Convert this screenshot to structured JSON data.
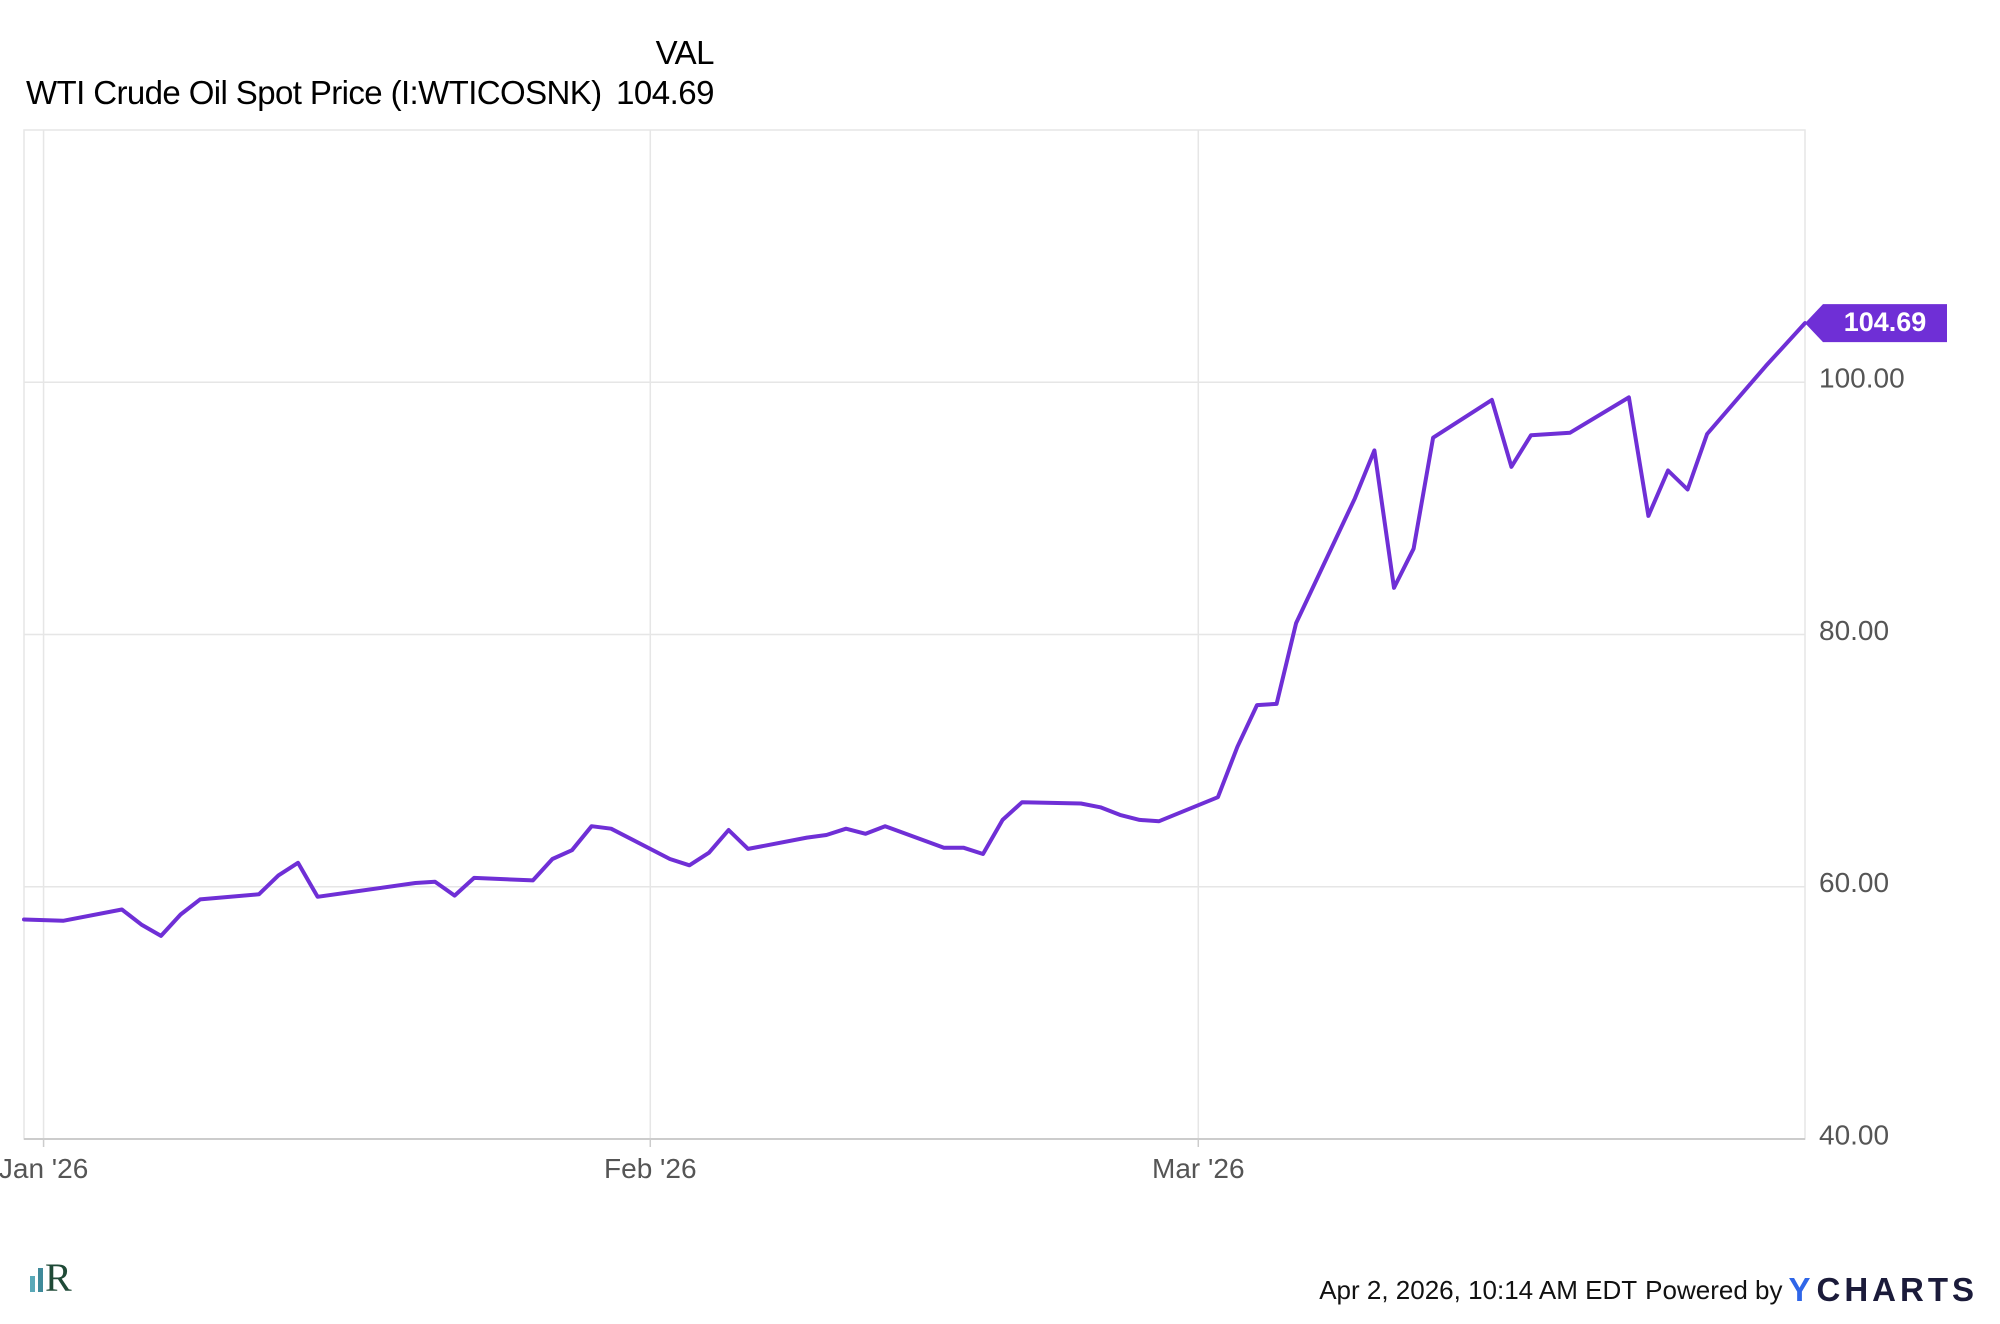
{
  "legend": {
    "header": "VAL",
    "series_name": "WTI Crude Oil Spot Price (I:WTICOSNK)",
    "series_value": "104.69"
  },
  "footer": {
    "timestamp": "Apr 2, 2026, 10:14 AM EDT",
    "powered_by": "Powered by",
    "brand_y": "Y",
    "brand_rest": "CHARTS"
  },
  "colors": {
    "line": "#6f2fd6",
    "grid": "#e6e6e6",
    "axis_text": "#555555",
    "brand": "#2f66e8"
  },
  "logo_icon": "r-logo-icon",
  "chart_data": {
    "type": "line",
    "title": "",
    "xlabel": "",
    "ylabel": "",
    "ylim": [
      40,
      120
    ],
    "xlim": [
      "2025-12-31",
      "2026-04-01"
    ],
    "yticks": [
      40,
      60,
      80,
      100
    ],
    "ytick_labels": [
      "40.00",
      "60.00",
      "80.00",
      "100.00"
    ],
    "xticks": [
      {
        "date": "2026-01-01",
        "label": "Jan '26"
      },
      {
        "date": "2026-02-01",
        "label": "Feb '26"
      },
      {
        "date": "2026-03-01",
        "label": "Mar '26"
      }
    ],
    "grid": true,
    "legend_position": "top-left",
    "last_value_label": "104.69",
    "series": [
      {
        "name": "WTI Crude Oil Spot Price (I:WTICOSNK)",
        "data": [
          [
            "2025-12-31",
            57.4
          ],
          [
            "2026-01-02",
            57.3
          ],
          [
            "2026-01-05",
            58.2
          ],
          [
            "2026-01-06",
            57.0
          ],
          [
            "2026-01-07",
            56.1
          ],
          [
            "2026-01-08",
            57.8
          ],
          [
            "2026-01-09",
            59.0
          ],
          [
            "2026-01-12",
            59.4
          ],
          [
            "2026-01-13",
            60.9
          ],
          [
            "2026-01-14",
            61.9
          ],
          [
            "2026-01-15",
            59.2
          ],
          [
            "2026-01-20",
            60.3
          ],
          [
            "2026-01-21",
            60.4
          ],
          [
            "2026-01-22",
            59.3
          ],
          [
            "2026-01-23",
            60.7
          ],
          [
            "2026-01-26",
            60.5
          ],
          [
            "2026-01-27",
            62.2
          ],
          [
            "2026-01-28",
            62.9
          ],
          [
            "2026-01-29",
            64.8
          ],
          [
            "2026-01-30",
            64.6
          ],
          [
            "2026-02-02",
            62.2
          ],
          [
            "2026-02-03",
            61.7
          ],
          [
            "2026-02-04",
            62.7
          ],
          [
            "2026-02-05",
            64.5
          ],
          [
            "2026-02-06",
            63.0
          ],
          [
            "2026-02-09",
            63.9
          ],
          [
            "2026-02-10",
            64.1
          ],
          [
            "2026-02-11",
            64.6
          ],
          [
            "2026-02-12",
            64.2
          ],
          [
            "2026-02-13",
            64.8
          ],
          [
            "2026-02-16",
            63.1
          ],
          [
            "2026-02-17",
            63.1
          ],
          [
            "2026-02-18",
            62.6
          ],
          [
            "2026-02-19",
            65.3
          ],
          [
            "2026-02-20",
            66.7
          ],
          [
            "2026-02-23",
            66.6
          ],
          [
            "2026-02-24",
            66.3
          ],
          [
            "2026-02-25",
            65.7
          ],
          [
            "2026-02-26",
            65.3
          ],
          [
            "2026-02-27",
            65.2
          ],
          [
            "2026-03-02",
            67.1
          ],
          [
            "2026-03-03",
            71.1
          ],
          [
            "2026-03-04",
            74.4
          ],
          [
            "2026-03-05",
            74.5
          ],
          [
            "2026-03-06",
            80.9
          ],
          [
            "2026-03-09",
            90.8
          ],
          [
            "2026-03-10",
            94.6
          ],
          [
            "2026-03-11",
            83.7
          ],
          [
            "2026-03-12",
            86.8
          ],
          [
            "2026-03-13",
            95.6
          ],
          [
            "2026-03-16",
            98.6
          ],
          [
            "2026-03-17",
            93.3
          ],
          [
            "2026-03-18",
            95.8
          ],
          [
            "2026-03-19",
            95.9
          ],
          [
            "2026-03-20",
            96.0
          ],
          [
            "2026-03-23",
            98.8
          ],
          [
            "2026-03-24",
            89.4
          ],
          [
            "2026-03-25",
            93.0
          ],
          [
            "2026-03-26",
            91.5
          ],
          [
            "2026-03-27",
            95.9
          ],
          [
            "2026-03-30",
            101.3
          ],
          [
            "2026-04-01",
            104.69
          ]
        ]
      }
    ]
  }
}
